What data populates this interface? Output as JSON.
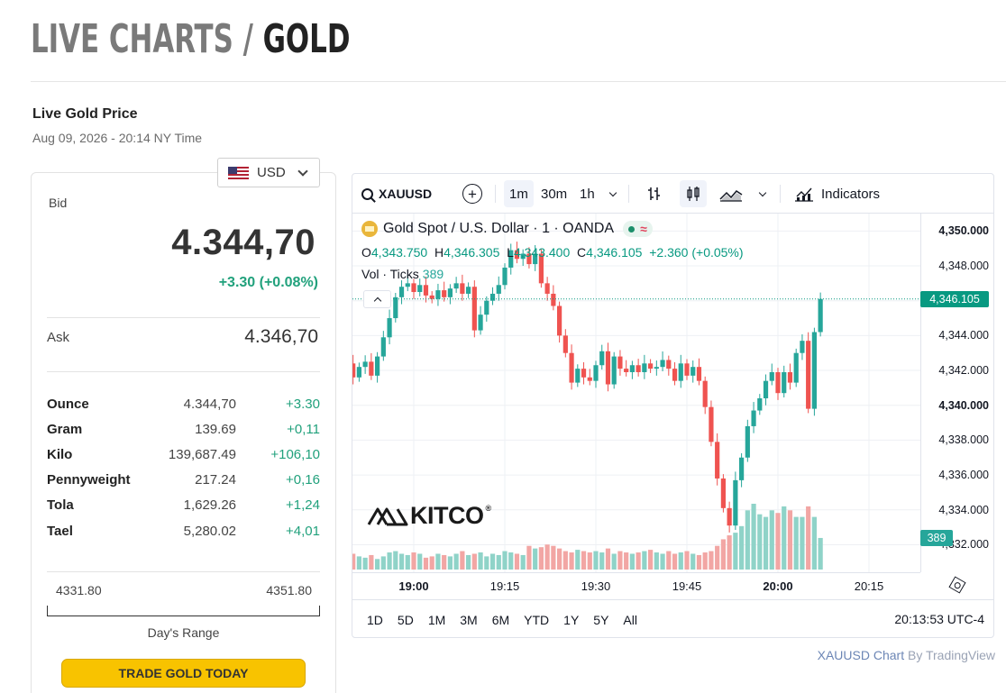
{
  "page": {
    "title_part1": "LIVE CHARTS / ",
    "title_part2": "GOLD",
    "live_label": "Live Gold Price",
    "date_time": "Aug 09, 2026 - 20:14 NY Time"
  },
  "currency": {
    "selected": "USD"
  },
  "prices": {
    "bid_label": "Bid",
    "bid": "4.344,70",
    "bid_change": "+3.30 (+0.08%)",
    "ask_label": "Ask",
    "ask": "4.346,70"
  },
  "units": [
    {
      "name": "Ounce",
      "price": "4.344,70",
      "change": "+3.30"
    },
    {
      "name": "Gram",
      "price": "139.69",
      "change": "+0,11"
    },
    {
      "name": "Kilo",
      "price": "139,687.49",
      "change": "+106,10"
    },
    {
      "name": "Pennyweight",
      "price": "217.24",
      "change": "+0,16"
    },
    {
      "name": "Tola",
      "price": "1,629.26",
      "change": "+1,24"
    },
    {
      "name": "Tael",
      "price": "5,280.02",
      "change": "+4,01"
    }
  ],
  "day_range": {
    "low": "4331.80",
    "high": "4351.80",
    "label": "Day's Range"
  },
  "trade_button": "TRADE GOLD TODAY",
  "toolbar": {
    "symbol": "XAUUSD",
    "add_symbol": "+",
    "timeframes": [
      "1m",
      "30m",
      "1h"
    ],
    "active_timeframe": "1m",
    "indicators": "Indicators"
  },
  "legend": {
    "title": "Gold Spot / U.S. Dollar · 1 · OANDA",
    "o_label": "O",
    "o": "4,343.750",
    "h_label": "H",
    "h": "4,346.305",
    "l_label": "L",
    "l": "4,343.400",
    "c_label": "C",
    "c": "4,346.105",
    "change": "+2.360 (+0.05%)",
    "vol_label": "Vol · Ticks",
    "vol": "389"
  },
  "chart_data": {
    "type": "candlestick",
    "y_ticks": [
      "4,350.000",
      "4,348.000",
      "4,346.000",
      "4,344.000",
      "4,342.000",
      "4,340.000",
      "4,338.000",
      "4,336.000",
      "4,334.000",
      "4,332.000"
    ],
    "y_tick_values": [
      4350,
      4348,
      4346,
      4344,
      4342,
      4340,
      4338,
      4336,
      4334,
      4332
    ],
    "bold_y_ticks": [
      "4,350.000",
      "4,340.000"
    ],
    "ylim": [
      4330.42,
      4351.0
    ],
    "x_ticks": [
      "19:00",
      "19:15",
      "19:30",
      "19:45",
      "20:00",
      "20:15"
    ],
    "bold_x_ticks": [
      "19:00",
      "20:00"
    ],
    "last_price": "4,346.105",
    "last_volume": "389",
    "start_minute": 1125,
    "closes": [
      4343.8,
      4342.3,
      4342.7,
      4342.0,
      4342.4,
      4341.6,
      4342.2,
      4342.5,
      4341.7,
      4342.8,
      4343.9,
      4345.0,
      4346.2,
      4346.8,
      4347.0,
      4346.5,
      4346.9,
      4346.3,
      4346.1,
      4346.6,
      4346.2,
      4346.7,
      4347.0,
      4346.4,
      4346.8,
      4344.3,
      4345.2,
      4346.0,
      4346.4,
      4346.9,
      4347.9,
      4348.9,
      4348.4,
      4348.7,
      4348.1,
      4348.7,
      4347.0,
      4346.4,
      4345.7,
      4344.0,
      4343.0,
      4341.3,
      4342.1,
      4341.6,
      4341.4,
      4342.3,
      4343.1,
      4341.2,
      4342.8,
      4342.1,
      4341.9,
      4342.3,
      4341.9,
      4342.4,
      4342.1,
      4342.2,
      4342.6,
      4342.1,
      4341.4,
      4342.4,
      4341.7,
      4342.2,
      4341.4,
      4339.9,
      4337.9,
      4335.8,
      4334.1,
      4333.1,
      4335.7,
      4337.0,
      4338.8,
      4339.7,
      4340.4,
      4341.4,
      4341.9,
      4340.7,
      4341.9,
      4341.3,
      4343.0,
      4343.7,
      4339.8,
      4344.2,
      4346.1
    ],
    "volumes": [
      8,
      12,
      11,
      9,
      13,
      12,
      10,
      9,
      11,
      8,
      10,
      13,
      14,
      12,
      11,
      13,
      12,
      9,
      10,
      12,
      11,
      10,
      12,
      14,
      11,
      12,
      13,
      10,
      12,
      11,
      14,
      13,
      12,
      11,
      18,
      16,
      17,
      19,
      18,
      16,
      14,
      13,
      15,
      14,
      13,
      14,
      13,
      16,
      12,
      14,
      13,
      12,
      13,
      14,
      15,
      13,
      12,
      14,
      12,
      13,
      14,
      12,
      11,
      13,
      14,
      18,
      23,
      26,
      28,
      33,
      45,
      50,
      42,
      40,
      45,
      43,
      48,
      45,
      40,
      40,
      48,
      40,
      24
    ],
    "volume_scale_max": 50
  },
  "time_axis": {
    "settings_icon": "settings-icon"
  },
  "range_tabs": [
    "1D",
    "5D",
    "1M",
    "3M",
    "6M",
    "YTD",
    "1Y",
    "5Y",
    "All"
  ],
  "clock": "20:13:53 UTC-4",
  "watermark": "KITCO",
  "credit": {
    "link": "XAUUSD Chart",
    "by": "By TradingView"
  },
  "colors": {
    "up": "#26a69a",
    "down": "#ef5350",
    "up_vol": "#8fd3c8",
    "down_vol": "#f2a6a4",
    "accent": "#f8c300"
  }
}
